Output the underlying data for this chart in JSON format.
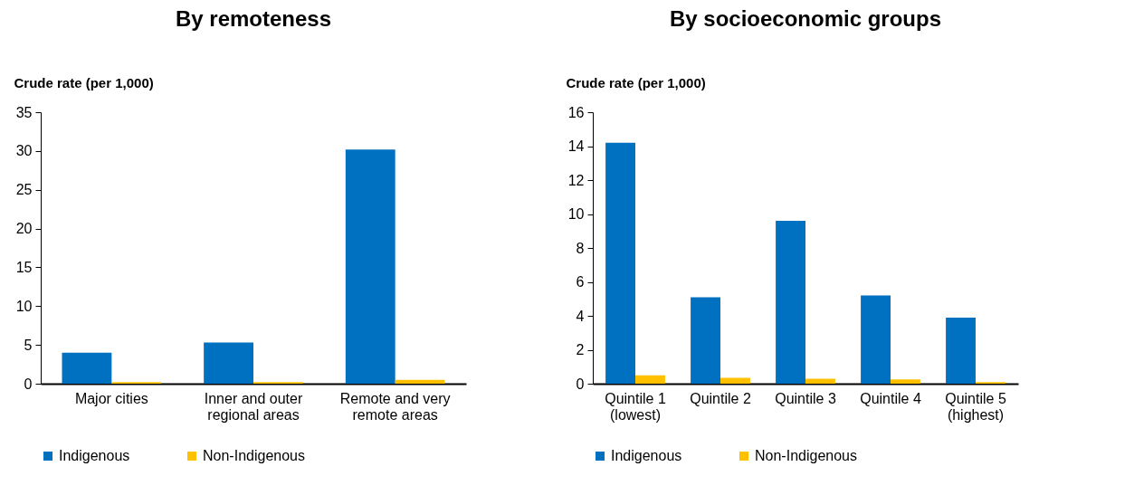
{
  "chart_data": [
    {
      "type": "bar",
      "title": "By remoteness",
      "ylabel": "Crude rate (per 1,000)",
      "categories": [
        "Major cities",
        "Inner and outer\nregional areas",
        "Remote and very\nremote areas"
      ],
      "series": [
        {
          "name": "Indigenous",
          "color": "#0070c0",
          "values": [
            4.0,
            5.3,
            30.2
          ]
        },
        {
          "name": "Non-Indigenous",
          "color": "#ffc000",
          "values": [
            0.2,
            0.2,
            0.5
          ]
        }
      ],
      "ylim": [
        0,
        35
      ],
      "yticks": [
        0,
        5,
        10,
        15,
        20,
        25,
        30,
        35
      ],
      "grid": false,
      "legend": "bottom"
    },
    {
      "type": "bar",
      "title": "By socioeconomic groups",
      "ylabel": "Crude rate (per 1,000)",
      "categories": [
        "Quintile 1\n(lowest)",
        "Quintile 2",
        "Quintile 3",
        "Quintile 4",
        "Quintile 5\n(highest)"
      ],
      "series": [
        {
          "name": "Indigenous",
          "color": "#0070c0",
          "values": [
            14.2,
            5.1,
            9.6,
            5.2,
            3.9
          ]
        },
        {
          "name": "Non-Indigenous",
          "color": "#ffc000",
          "values": [
            0.5,
            0.35,
            0.3,
            0.25,
            0.1
          ]
        }
      ],
      "ylim": [
        0,
        16
      ],
      "yticks": [
        0,
        2,
        4,
        6,
        8,
        10,
        12,
        14,
        16
      ],
      "grid": false,
      "legend": "bottom"
    }
  ]
}
